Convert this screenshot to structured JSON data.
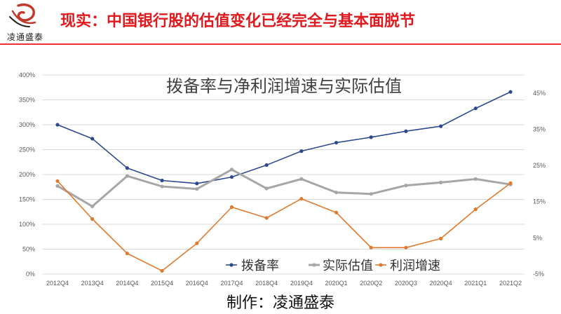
{
  "brand": {
    "name": "凌通盛泰",
    "logo_icon": "phoenix-logo-icon",
    "logo_color": "#c0392b"
  },
  "header": {
    "title": "现实：中国银行股的估值变化已经完全与基本面脱节",
    "title_color": "#e0191e"
  },
  "footer": {
    "credit": "制作：凌通盛泰"
  },
  "chart_data": {
    "type": "line",
    "title": "拨备率与净利润增速与实际估值",
    "categories": [
      "2012Q4",
      "2013Q4",
      "2014Q4",
      "2015Q4",
      "2016Q4",
      "2017Q4",
      "2018Q4",
      "2019Q4",
      "2020Q1",
      "2020Q2",
      "2020Q3",
      "2020Q4",
      "2021Q1",
      "2021Q2"
    ],
    "left_axis": {
      "range": [
        0,
        400
      ],
      "ticks": [
        0,
        50,
        100,
        150,
        200,
        250,
        300,
        350,
        400
      ],
      "tick_labels": [
        "0%",
        "50%",
        "100%",
        "150%",
        "200%",
        "250%",
        "300%",
        "350%",
        "400%"
      ]
    },
    "right_axis": {
      "range": [
        -5,
        50
      ],
      "ticks": [
        -5,
        5,
        15,
        25,
        35,
        45
      ],
      "tick_labels": [
        "-5%",
        "5%",
        "15%",
        "25%",
        "35%",
        "45%"
      ]
    },
    "legend_position": "bottom-center",
    "series": [
      {
        "name": "拨备率",
        "axis": "left",
        "color": "#2e4a8f",
        "marker": "dot",
        "values": [
          300,
          272,
          213,
          188,
          182,
          195,
          219,
          247,
          264,
          275,
          287,
          297,
          333,
          366
        ]
      },
      {
        "name": "实际估值",
        "axis": "left",
        "color": "#a6a6a6",
        "marker": "dot",
        "values": [
          177,
          136,
          197,
          176,
          171,
          210,
          172,
          191,
          164,
          161,
          178,
          184,
          191,
          180
        ]
      },
      {
        "name": "利润增速",
        "axis": "right",
        "color": "#e07a2e",
        "marker": "dot",
        "values": [
          20.7,
          10.2,
          0.7,
          -4.1,
          3.5,
          13.5,
          10.5,
          15.8,
          12.0,
          2.3,
          2.3,
          4.8,
          12.9,
          20.1
        ]
      }
    ]
  }
}
